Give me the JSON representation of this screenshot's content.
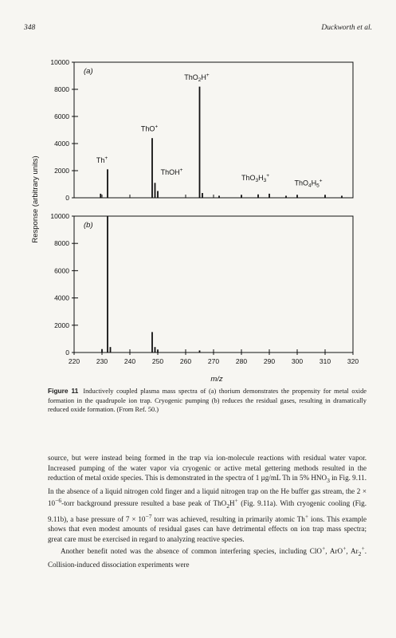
{
  "header": {
    "page_number": "348",
    "running_author": "Duckworth et al."
  },
  "figure": {
    "shared_ylabel": "Response (arbitrary units)",
    "xlabel": "m/z"
  },
  "chart_data": [
    {
      "type": "line",
      "panel_label": "(a)",
      "xlim": [
        220,
        320
      ],
      "ylim": [
        0,
        10000
      ],
      "x_ticks": [
        220,
        230,
        240,
        250,
        260,
        270,
        280,
        290,
        300,
        310,
        320
      ],
      "y_ticks": [
        0,
        2000,
        4000,
        6000,
        8000,
        10000
      ],
      "grid": false,
      "peaks": [
        {
          "x": 229.5,
          "y": 300
        },
        {
          "x": 232,
          "y": 2100
        },
        {
          "x": 248,
          "y": 4400
        },
        {
          "x": 249,
          "y": 1100
        },
        {
          "x": 250,
          "y": 500
        },
        {
          "x": 265,
          "y": 8200
        },
        {
          "x": 266,
          "y": 350
        },
        {
          "x": 272,
          "y": 150
        },
        {
          "x": 280,
          "y": 200
        },
        {
          "x": 286,
          "y": 250
        },
        {
          "x": 290,
          "y": 300
        },
        {
          "x": 296,
          "y": 150
        },
        {
          "x": 300,
          "y": 200
        },
        {
          "x": 310,
          "y": 200
        },
        {
          "x": 316,
          "y": 150
        }
      ],
      "annotations": [
        {
          "base": "Th",
          "sub": "",
          "mid": "",
          "sub2": "",
          "x": 230,
          "y": 2600
        },
        {
          "base": "ThO",
          "sub": "",
          "mid": "",
          "sub2": "",
          "x": 247,
          "y": 4900
        },
        {
          "base": "ThOH",
          "sub": "",
          "mid": "",
          "sub2": "",
          "x": 255,
          "y": 1700
        },
        {
          "base": "ThO",
          "sub": "2",
          "mid": "H",
          "sub2": "",
          "x": 264,
          "y": 8700
        },
        {
          "base": "ThO",
          "sub": "3",
          "mid": "H",
          "sub2": "3",
          "x": 285,
          "y": 1300
        },
        {
          "base": "ThO",
          "sub": "4",
          "mid": "H",
          "sub2": "5",
          "x": 304,
          "y": 900
        }
      ]
    },
    {
      "type": "line",
      "panel_label": "(b)",
      "xlim": [
        220,
        320
      ],
      "ylim": [
        0,
        10000
      ],
      "x_ticks": [
        220,
        230,
        240,
        250,
        260,
        270,
        280,
        290,
        300,
        310,
        320
      ],
      "y_ticks": [
        0,
        2000,
        4000,
        6000,
        8000,
        10000
      ],
      "grid": false,
      "peaks": [
        {
          "x": 230,
          "y": 250
        },
        {
          "x": 232,
          "y": 10000
        },
        {
          "x": 233,
          "y": 400
        },
        {
          "x": 248,
          "y": 1500
        },
        {
          "x": 249,
          "y": 400
        },
        {
          "x": 250,
          "y": 200
        },
        {
          "x": 265,
          "y": 150
        }
      ],
      "annotations": []
    }
  ],
  "caption": {
    "label": "Figure 11",
    "text": "Inductively coupled plasma mass spectra of (a) thorium demonstrates the propensity for metal oxide formation in the quadrupole ion trap. Cryogenic pumping (b) reduces the residual gases, resulting in dramatically reduced oxide formation. (From Ref. 50.)"
  },
  "body": {
    "p1": {
      "t1": "source, but were instead being formed in the trap via ion-molecule reactions with residual water vapor. Increased pumping of the water vapor via cryogenic or active metal gettering methods resulted in the reduction of metal oxide species. This is demonstrated in the spectra of 1 µg/mL Th in 5% HNO",
      "t2": " in Fig. 9.11. In the absence of a liquid nitrogen cold finger and a liquid nitrogen trap on the He buffer gas stream, the 2 × 10",
      "t3": "-torr background pressure resulted a base peak of ThO",
      "t4": "H",
      "t5": " (Fig. 9.11a). With cryogenic cooling (Fig. 9.11b), a base pressure of 7 × 10",
      "t6": " torr was achieved, resulting in primarily atomic Th",
      "t7": " ions. This example shows that even modest amounts of residual gases can have detrimental effects on ion trap mass spectra; great care must be exercised in regard to analyzing reactive species."
    },
    "p2": {
      "t1": "Another benefit noted was the absence of common interfering species, including ClO",
      "t2": ", ArO",
      "t3": ", Ar",
      "t4": ". Collision-induced dissociation experiments were"
    }
  }
}
